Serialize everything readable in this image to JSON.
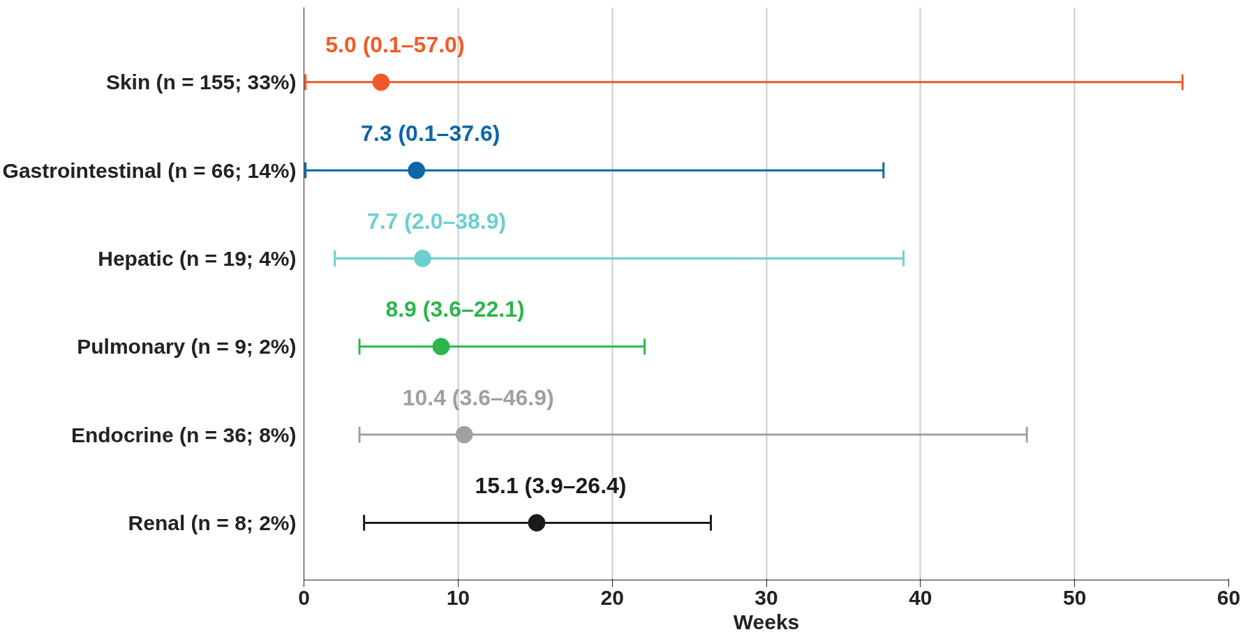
{
  "chart_data": {
    "type": "scatter",
    "orientation": "horizontal",
    "xlabel": "Weeks",
    "categories": [
      "Skin (n = 155; 33%)",
      "Gastrointestinal (n = 66; 14%)",
      "Hepatic (n = 19; 4%)",
      "Pulmonary (n = 9; 2%)",
      "Endocrine (n = 36; 8%)",
      "Renal (n = 8; 2%)"
    ],
    "values": [
      5.0,
      7.3,
      7.7,
      8.9,
      10.4,
      15.1
    ],
    "errors": [
      [
        0.1,
        57.0
      ],
      [
        0.1,
        37.6
      ],
      [
        2.0,
        38.9
      ],
      [
        3.6,
        22.1
      ],
      [
        3.6,
        46.9
      ],
      [
        3.9,
        26.4
      ]
    ],
    "colors": [
      "#f05a28",
      "#0a66a8",
      "#6ccfcf",
      "#2bb54a",
      "#a0a0a0",
      "#1a1a1a"
    ],
    "value_labels": [
      "5.0 (0.1–57.0)",
      "7.3 (0.1–37.6)",
      "7.7 (2.0–38.9)",
      "8.9 (3.6–22.1)",
      "10.4 (3.6–46.9)",
      "15.1 (3.9–26.4)"
    ],
    "xlim": [
      0,
      60
    ],
    "xticks": [
      0,
      10,
      20,
      30,
      40,
      50,
      60
    ],
    "grid": "x",
    "marker": "circle"
  }
}
